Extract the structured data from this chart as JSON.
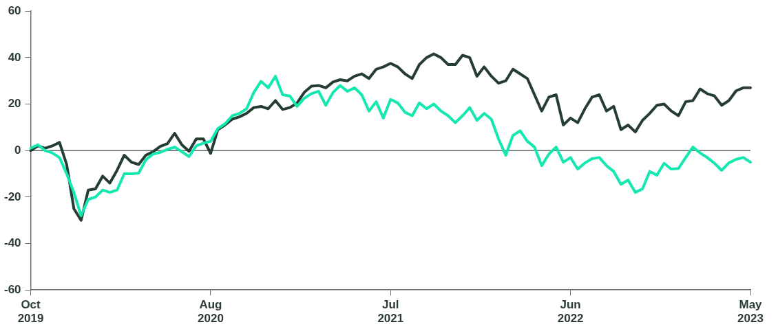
{
  "chart_data": {
    "type": "line",
    "categories": [
      "Oct 2019",
      null,
      null,
      null,
      null,
      null,
      null,
      null,
      null,
      null,
      null,
      null,
      null,
      null,
      null,
      null,
      null,
      null,
      null,
      null,
      null,
      null,
      null,
      null,
      null,
      "Aug 2020",
      null,
      null,
      null,
      null,
      null,
      null,
      null,
      null,
      null,
      null,
      null,
      null,
      null,
      null,
      null,
      null,
      null,
      null,
      null,
      null,
      null,
      null,
      null,
      null,
      "Jul 2021",
      null,
      null,
      null,
      null,
      null,
      null,
      null,
      null,
      null,
      null,
      null,
      null,
      null,
      null,
      null,
      null,
      null,
      null,
      null,
      null,
      null,
      null,
      null,
      null,
      "Jun 2022",
      null,
      null,
      null,
      null,
      null,
      null,
      null,
      null,
      null,
      null,
      null,
      null,
      null,
      null,
      null,
      null,
      null,
      null,
      null,
      null,
      null,
      null,
      null,
      null,
      "May 2023"
    ],
    "series": [
      {
        "color": "#14e8b0",
        "values": [
          1,
          2.5,
          0,
          -1,
          -3,
          -10,
          -18,
          -28,
          -21,
          -20,
          -17,
          -18,
          -17,
          -10,
          -10,
          -9.7,
          -4,
          -1.5,
          -0.8,
          0.5,
          1.5,
          -0.5,
          -2.6,
          2,
          3.2,
          4,
          9.5,
          11.5,
          15,
          16,
          18,
          25,
          29.8,
          27,
          32,
          24,
          23.5,
          19,
          22.5,
          24.5,
          25.5,
          19.5,
          25,
          28,
          25.5,
          27,
          24,
          17,
          21,
          14,
          22,
          20.5,
          16.5,
          15,
          20.5,
          18,
          20,
          17,
          15,
          12,
          15,
          18.5,
          13,
          16,
          13.5,
          5,
          -2,
          6.5,
          8.5,
          4,
          1.5,
          -6.5,
          -1.5,
          1.5,
          -5,
          -3,
          -8,
          -5.3,
          -3.5,
          -3,
          -6.5,
          -9,
          -14.5,
          -12.7,
          -18,
          -16.5,
          -9,
          -10.6,
          -5.5,
          -8,
          -7.7,
          -3,
          1.5,
          -1,
          -3,
          -5.5,
          -8.5,
          -5.3,
          -3.8,
          -3,
          -5
        ]
      },
      {
        "color": "#263d33",
        "values": [
          0,
          2,
          1,
          2,
          3.5,
          -6,
          -25,
          -30,
          -17,
          -16.5,
          -11,
          -14,
          -8.5,
          -2,
          -5,
          -6,
          -2,
          -0.5,
          1.8,
          3,
          7.4,
          2.5,
          -0.3,
          5,
          5,
          -1.2,
          9,
          11,
          13.5,
          14.5,
          16,
          18.5,
          19,
          18,
          21.5,
          17.7,
          18.5,
          20.4,
          25,
          27.7,
          28,
          27,
          29.5,
          30.5,
          30,
          32,
          33,
          31,
          35,
          36,
          37.5,
          36,
          33,
          31,
          37,
          40,
          41.6,
          40,
          37,
          37,
          41,
          40,
          32,
          36,
          32,
          29,
          30,
          35,
          33,
          31,
          24,
          17,
          23,
          24,
          11,
          14,
          12,
          18,
          23,
          24,
          17,
          19,
          9,
          11,
          8,
          13,
          16,
          19.5,
          20,
          17,
          15,
          21,
          21.5,
          26.5,
          24.5,
          23.5,
          19.5,
          21.5,
          25.7,
          27,
          27
        ]
      }
    ],
    "ylim": [
      -60,
      60
    ],
    "yticks": [
      -60,
      -40,
      -20,
      0,
      20,
      40,
      60
    ],
    "ref_lines": [
      {
        "axis": "y",
        "value": 0,
        "color": "#5f6b66"
      }
    ],
    "grid": false,
    "legend": false,
    "marker": "none",
    "line_style": "solid"
  }
}
